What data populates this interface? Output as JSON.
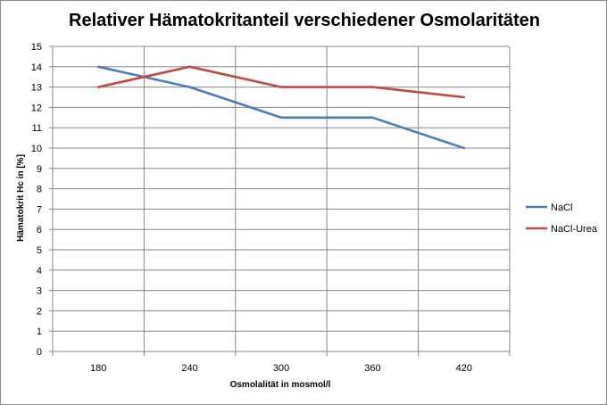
{
  "chart_data": {
    "type": "line",
    "title": "Relativer Hämatokritanteil verschiedener Osmolaritäten",
    "xlabel": "Osmolalität  in mosmol/l",
    "ylabel": "Hämatokrit Hc in [%]",
    "categories": [
      "180",
      "240",
      "300",
      "360",
      "420"
    ],
    "ylim": [
      0,
      15
    ],
    "ytick_step": 1,
    "grid": true,
    "legend_position": "right",
    "series": [
      {
        "name": "NaCl",
        "color": "#4a7ebb",
        "values": [
          14,
          13,
          11.5,
          11.5,
          10
        ]
      },
      {
        "name": "NaCl-Urea",
        "color": "#be4b48",
        "values": [
          13,
          14,
          13,
          13,
          12.5
        ]
      }
    ]
  }
}
